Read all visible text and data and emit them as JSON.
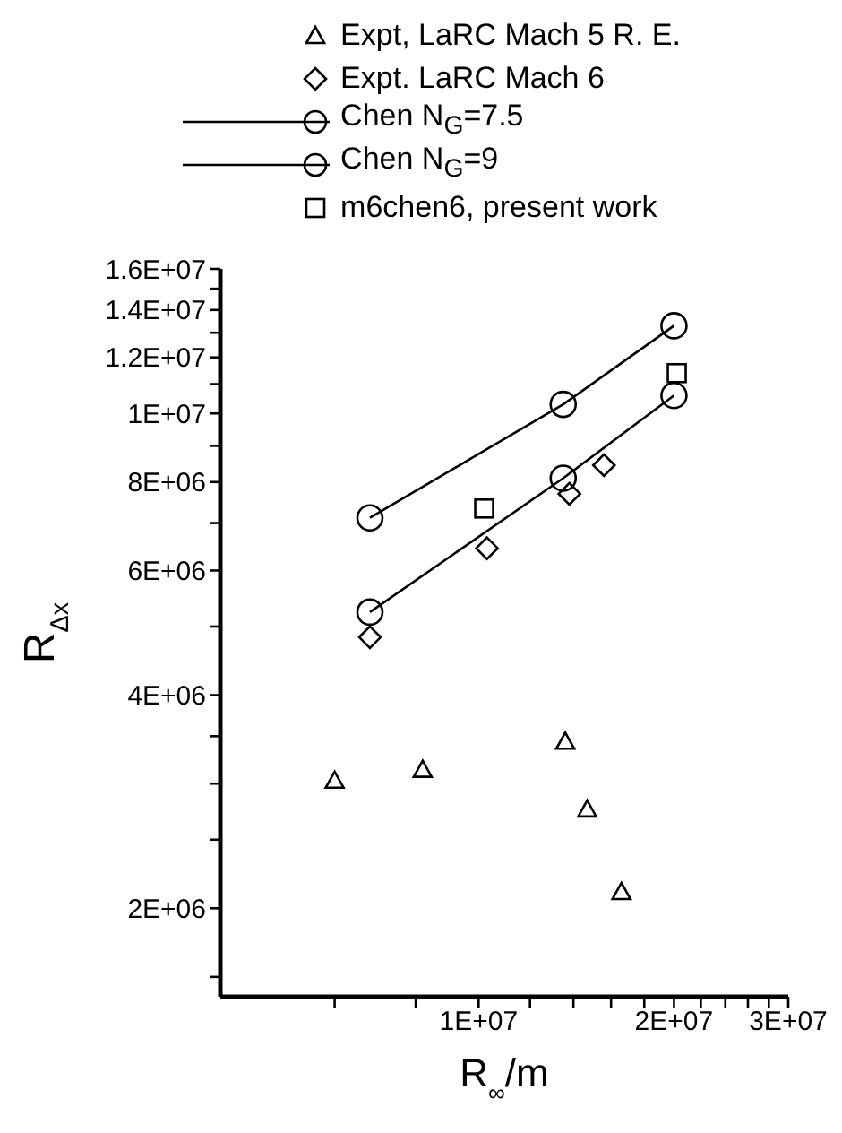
{
  "chart_data": {
    "type": "scatter",
    "xlabel": "R$_{∞}$/m",
    "ylabel": "R$_{Δx}$",
    "log": "xy",
    "legend": "top",
    "xlim": [
      4000000,
      30000000
    ],
    "xticks": [
      {
        "value": 6000000,
        "label": null
      },
      {
        "value": 8000000,
        "label": null
      },
      {
        "value": 10000000,
        "label": "1E+07"
      },
      {
        "value": 12000000,
        "label": null
      },
      {
        "value": 14000000,
        "label": null
      },
      {
        "value": 16000000,
        "label": null
      },
      {
        "value": 18000000,
        "label": null
      },
      {
        "value": 20000000,
        "label": "2E+07"
      },
      {
        "value": 22000000,
        "label": null
      },
      {
        "value": 24000000,
        "label": null
      },
      {
        "value": 26000000,
        "label": null
      },
      {
        "value": 28000000,
        "label": null
      },
      {
        "value": 30000000,
        "label": "3E+07"
      }
    ],
    "ylim": [
      1500000,
      16000000
    ],
    "yticks": [
      {
        "value": 1600000,
        "label": null
      },
      {
        "value": 2000000,
        "label": "2E+06"
      },
      {
        "value": 2500000,
        "label": null
      },
      {
        "value": 3000000,
        "label": null
      },
      {
        "value": 3500000,
        "label": null
      },
      {
        "value": 4000000,
        "label": "4E+06"
      },
      {
        "value": 5000000,
        "label": null
      },
      {
        "value": 6000000,
        "label": "6E+06"
      },
      {
        "value": 7000000,
        "label": null
      },
      {
        "value": 8000000,
        "label": "8E+06"
      },
      {
        "value": 9000000,
        "label": null
      },
      {
        "value": 10000000,
        "label": "1E+07"
      },
      {
        "value": 11000000,
        "label": null
      },
      {
        "value": 12000000,
        "label": "1.2E+07"
      },
      {
        "value": 13000000,
        "label": null
      },
      {
        "value": 14000000,
        "label": "1.4E+07"
      },
      {
        "value": 15000000,
        "label": null
      },
      {
        "value": 16000000,
        "label": "1.6E+07"
      }
    ],
    "series": [
      {
        "name": "Expt, LaRC Mach 5 R. E.",
        "marker": "triangle",
        "color": "#000000",
        "x": [
          6000000,
          8200000,
          13600000,
          14700000,
          16600000
        ],
        "values": [
          3030000,
          3140000,
          3440000,
          2760000,
          2110000
        ]
      },
      {
        "name": "Expt. LaRC Mach 6",
        "marker": "diamond",
        "color": "#000000",
        "x": [
          6800000,
          10300000,
          13800000,
          15600000
        ],
        "values": [
          4830000,
          6450000,
          7700000,
          8450000
        ]
      },
      {
        "name": "Chen N$_{G}$=7.5",
        "type": "line",
        "marker": "circle",
        "color": "#000000",
        "x": [
          6800000,
          13500000,
          20000000
        ],
        "values": [
          5240000,
          8100000,
          10600000
        ]
      },
      {
        "name": "Chen N$_{G}$=9",
        "type": "line",
        "marker": "circle",
        "color": "#000000",
        "x": [
          6800000,
          13500000,
          20000000
        ],
        "values": [
          7120000,
          10300000,
          13300000
        ]
      },
      {
        "name": "m6chen6, present work",
        "marker": "square",
        "color": "#000000",
        "x": [
          10200000,
          20200000
        ],
        "values": [
          7340000,
          11400000
        ]
      }
    ]
  }
}
